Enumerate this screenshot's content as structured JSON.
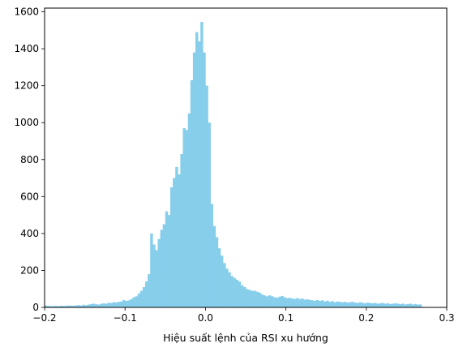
{
  "chart_data": {
    "type": "bar",
    "title": "",
    "xlabel": "Hiệu suất lệnh của RSI xu hướng",
    "ylabel": "",
    "xlim": [
      -0.2,
      0.3
    ],
    "ylim": [
      0,
      1620
    ],
    "bin_start": -0.2,
    "bin_width": 0.003125,
    "x_ticks": [
      -0.2,
      -0.1,
      0.0,
      0.1,
      0.2,
      0.3
    ],
    "x_tick_labels": [
      "−0.2",
      "−0.1",
      "0.0",
      "0.1",
      "0.2",
      "0.3"
    ],
    "y_ticks": [
      0,
      200,
      400,
      600,
      800,
      1000,
      1200,
      1400,
      1600
    ],
    "y_tick_labels": [
      "0",
      "200",
      "400",
      "600",
      "800",
      "1000",
      "1200",
      "1400",
      "1600"
    ],
    "color": "#87CEEB",
    "grid": false,
    "values": [
      10,
      8,
      6,
      7,
      8,
      7,
      9,
      8,
      8,
      10,
      9,
      9,
      11,
      12,
      10,
      14,
      12,
      15,
      18,
      20,
      17,
      15,
      19,
      22,
      20,
      25,
      24,
      28,
      27,
      30,
      32,
      40,
      35,
      38,
      45,
      55,
      60,
      75,
      90,
      110,
      140,
      180,
      400,
      340,
      310,
      370,
      420,
      450,
      520,
      500,
      650,
      700,
      760,
      720,
      830,
      970,
      960,
      1050,
      1230,
      1380,
      1490,
      1440,
      1545,
      1380,
      1200,
      1000,
      560,
      440,
      380,
      320,
      280,
      240,
      210,
      190,
      170,
      160,
      150,
      140,
      120,
      110,
      100,
      95,
      90,
      90,
      85,
      80,
      70,
      65,
      60,
      65,
      60,
      55,
      52,
      58,
      62,
      55,
      50,
      52,
      48,
      46,
      50,
      45,
      48,
      42,
      44,
      40,
      38,
      36,
      40,
      35,
      38,
      32,
      36,
      30,
      34,
      28,
      32,
      30,
      28,
      30,
      26,
      28,
      30,
      26,
      24,
      28,
      25,
      22,
      26,
      24,
      22,
      24,
      20,
      22,
      24,
      20,
      22,
      18,
      20,
      22,
      20,
      18,
      20,
      16,
      18,
      20,
      16,
      18,
      15,
      16
    ]
  }
}
